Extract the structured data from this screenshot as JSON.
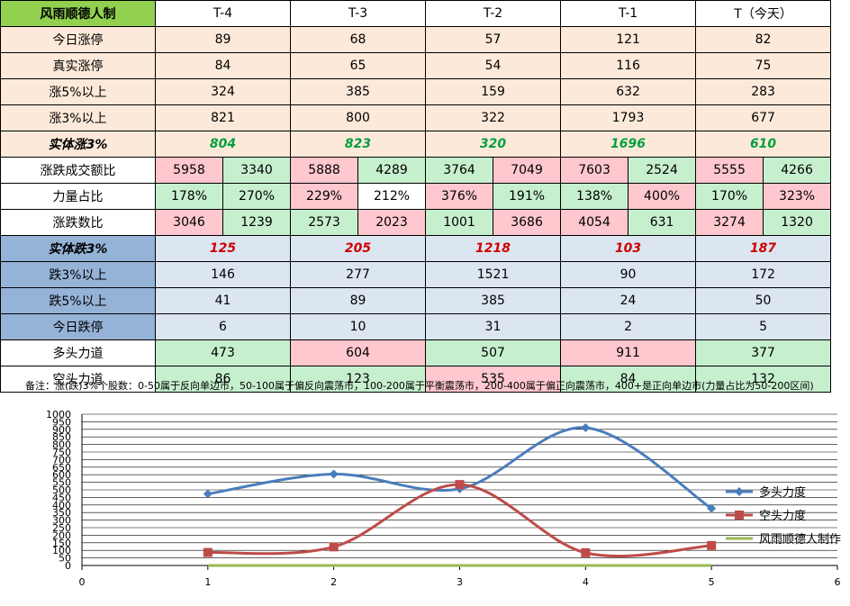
{
  "table": {
    "corner": "风雨顺德人制",
    "headers": [
      "T-4",
      "T-3",
      "T-2",
      "T-1",
      "T（今天）"
    ],
    "rows_top": [
      {
        "label": "今日涨停",
        "values": [
          "89",
          "68",
          "57",
          "121",
          "82"
        ]
      },
      {
        "label": "真实涨停",
        "values": [
          "84",
          "65",
          "54",
          "116",
          "75"
        ]
      },
      {
        "label": "涨5%以上",
        "values": [
          "324",
          "385",
          "159",
          "632",
          "283"
        ]
      },
      {
        "label": "涨3%以上",
        "values": [
          "821",
          "800",
          "322",
          "1793",
          "677"
        ]
      }
    ],
    "up3_solid": {
      "label": "实体涨3%",
      "values": [
        "804",
        "823",
        "320",
        "1696",
        "610"
      ]
    },
    "turnover_ratio": {
      "label": "涨跌成交额比",
      "values": [
        [
          "5958",
          "3340"
        ],
        [
          "5888",
          "4289"
        ],
        [
          "3764",
          "7049"
        ],
        [
          "7603",
          "2524"
        ],
        [
          "5555",
          "4266"
        ]
      ]
    },
    "power_ratio": {
      "label": "力量占比",
      "values": [
        [
          "178%",
          "270%"
        ],
        [
          "229%",
          "212%"
        ],
        [
          "376%",
          "191%"
        ],
        [
          "138%",
          "400%"
        ],
        [
          "170%",
          "323%"
        ]
      ]
    },
    "count_ratio": {
      "label": "涨跌数比",
      "values": [
        [
          "3046",
          "1239"
        ],
        [
          "2573",
          "2023"
        ],
        [
          "1001",
          "3686"
        ],
        [
          "4054",
          "631"
        ],
        [
          "3274",
          "1320"
        ]
      ]
    },
    "down3_solid": {
      "label": "实体跌3%",
      "values": [
        "125",
        "205",
        "1218",
        "103",
        "187"
      ]
    },
    "rows_down": [
      {
        "label": "跌3%以上",
        "values": [
          "146",
          "277",
          "1521",
          "90",
          "172"
        ]
      },
      {
        "label": "跌5%以上",
        "values": [
          "41",
          "89",
          "385",
          "24",
          "50"
        ]
      },
      {
        "label": "今日跌停",
        "values": [
          "6",
          "10",
          "31",
          "2",
          "5"
        ]
      }
    ],
    "bull_power": {
      "label": "多头力道",
      "values": [
        "473",
        "604",
        "507",
        "911",
        "377"
      ]
    },
    "bear_power": {
      "label": "空头力道",
      "values": [
        "86",
        "123",
        "535",
        "84",
        "132"
      ]
    }
  },
  "note": "备注：涨(跌)3%个股数：0-50属于反向单边市，50-100属于偏反向震荡市，100-200属于平衡震荡市，200-400属于偏正向震荡市，400+是正向单边市(力量占比为50-200区间)",
  "colors": {
    "green_cell": "#c6efce",
    "pink_cell": "#ffc7ce",
    "peach": "#fde9d9",
    "blue_label": "#95b3d7",
    "blue_cell": "#dce6f1",
    "corner": "#92d050"
  },
  "chart_data": {
    "type": "line",
    "x": [
      1,
      2,
      3,
      4,
      5
    ],
    "xlim": [
      0,
      6
    ],
    "ylim": [
      0,
      1000
    ],
    "x_ticks": [
      "0",
      "1",
      "2",
      "3",
      "4",
      "5",
      "6"
    ],
    "y_ticks": [
      "0",
      "50",
      "100",
      "150",
      "200",
      "250",
      "300",
      "350",
      "400",
      "450",
      "500",
      "550",
      "600",
      "650",
      "700",
      "750",
      "800",
      "850",
      "900",
      "950",
      "1000"
    ],
    "grid": true,
    "legend_position": "right",
    "series": [
      {
        "name": "多头力度",
        "values": [
          473,
          604,
          507,
          911,
          377
        ],
        "color": "#4a7ebb",
        "marker": "diamond"
      },
      {
        "name": "空头力度",
        "values": [
          86,
          123,
          535,
          84,
          132
        ],
        "color": "#be4b48",
        "marker": "square"
      },
      {
        "name": "风雨顺德人制作",
        "values": [
          0,
          0,
          0,
          0,
          0
        ],
        "color": "#98b954",
        "marker": "none"
      }
    ]
  }
}
